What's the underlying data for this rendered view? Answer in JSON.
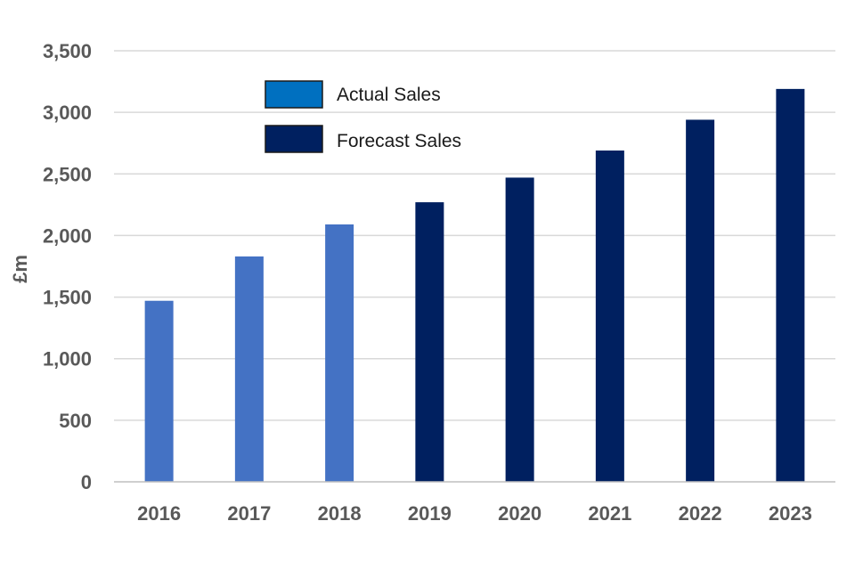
{
  "chart_data": {
    "type": "bar",
    "categories": [
      "2016",
      "2017",
      "2018",
      "2019",
      "2020",
      "2021",
      "2022",
      "2023"
    ],
    "values": [
      1470,
      1830,
      2090,
      2270,
      2470,
      2690,
      2940,
      3190
    ],
    "series_index": [
      0,
      0,
      0,
      1,
      1,
      1,
      1,
      1
    ],
    "series": [
      {
        "name": "Actual Sales",
        "color": "#4472C4",
        "legend_color": "#0070C0"
      },
      {
        "name": "Forecast Sales",
        "color": "#002060",
        "legend_color": "#002060"
      }
    ],
    "ylabel": "£m",
    "xlabel": "",
    "title": "",
    "ylim": [
      0,
      3500
    ],
    "yticks": [
      0,
      500,
      1000,
      1500,
      2000,
      2500,
      3000,
      3500
    ],
    "ytick_labels": [
      "0",
      "500",
      "1,000",
      "1,500",
      "2,000",
      "2,500",
      "3,000",
      "3,500"
    ],
    "grid": true,
    "legend_position": "top-left"
  }
}
